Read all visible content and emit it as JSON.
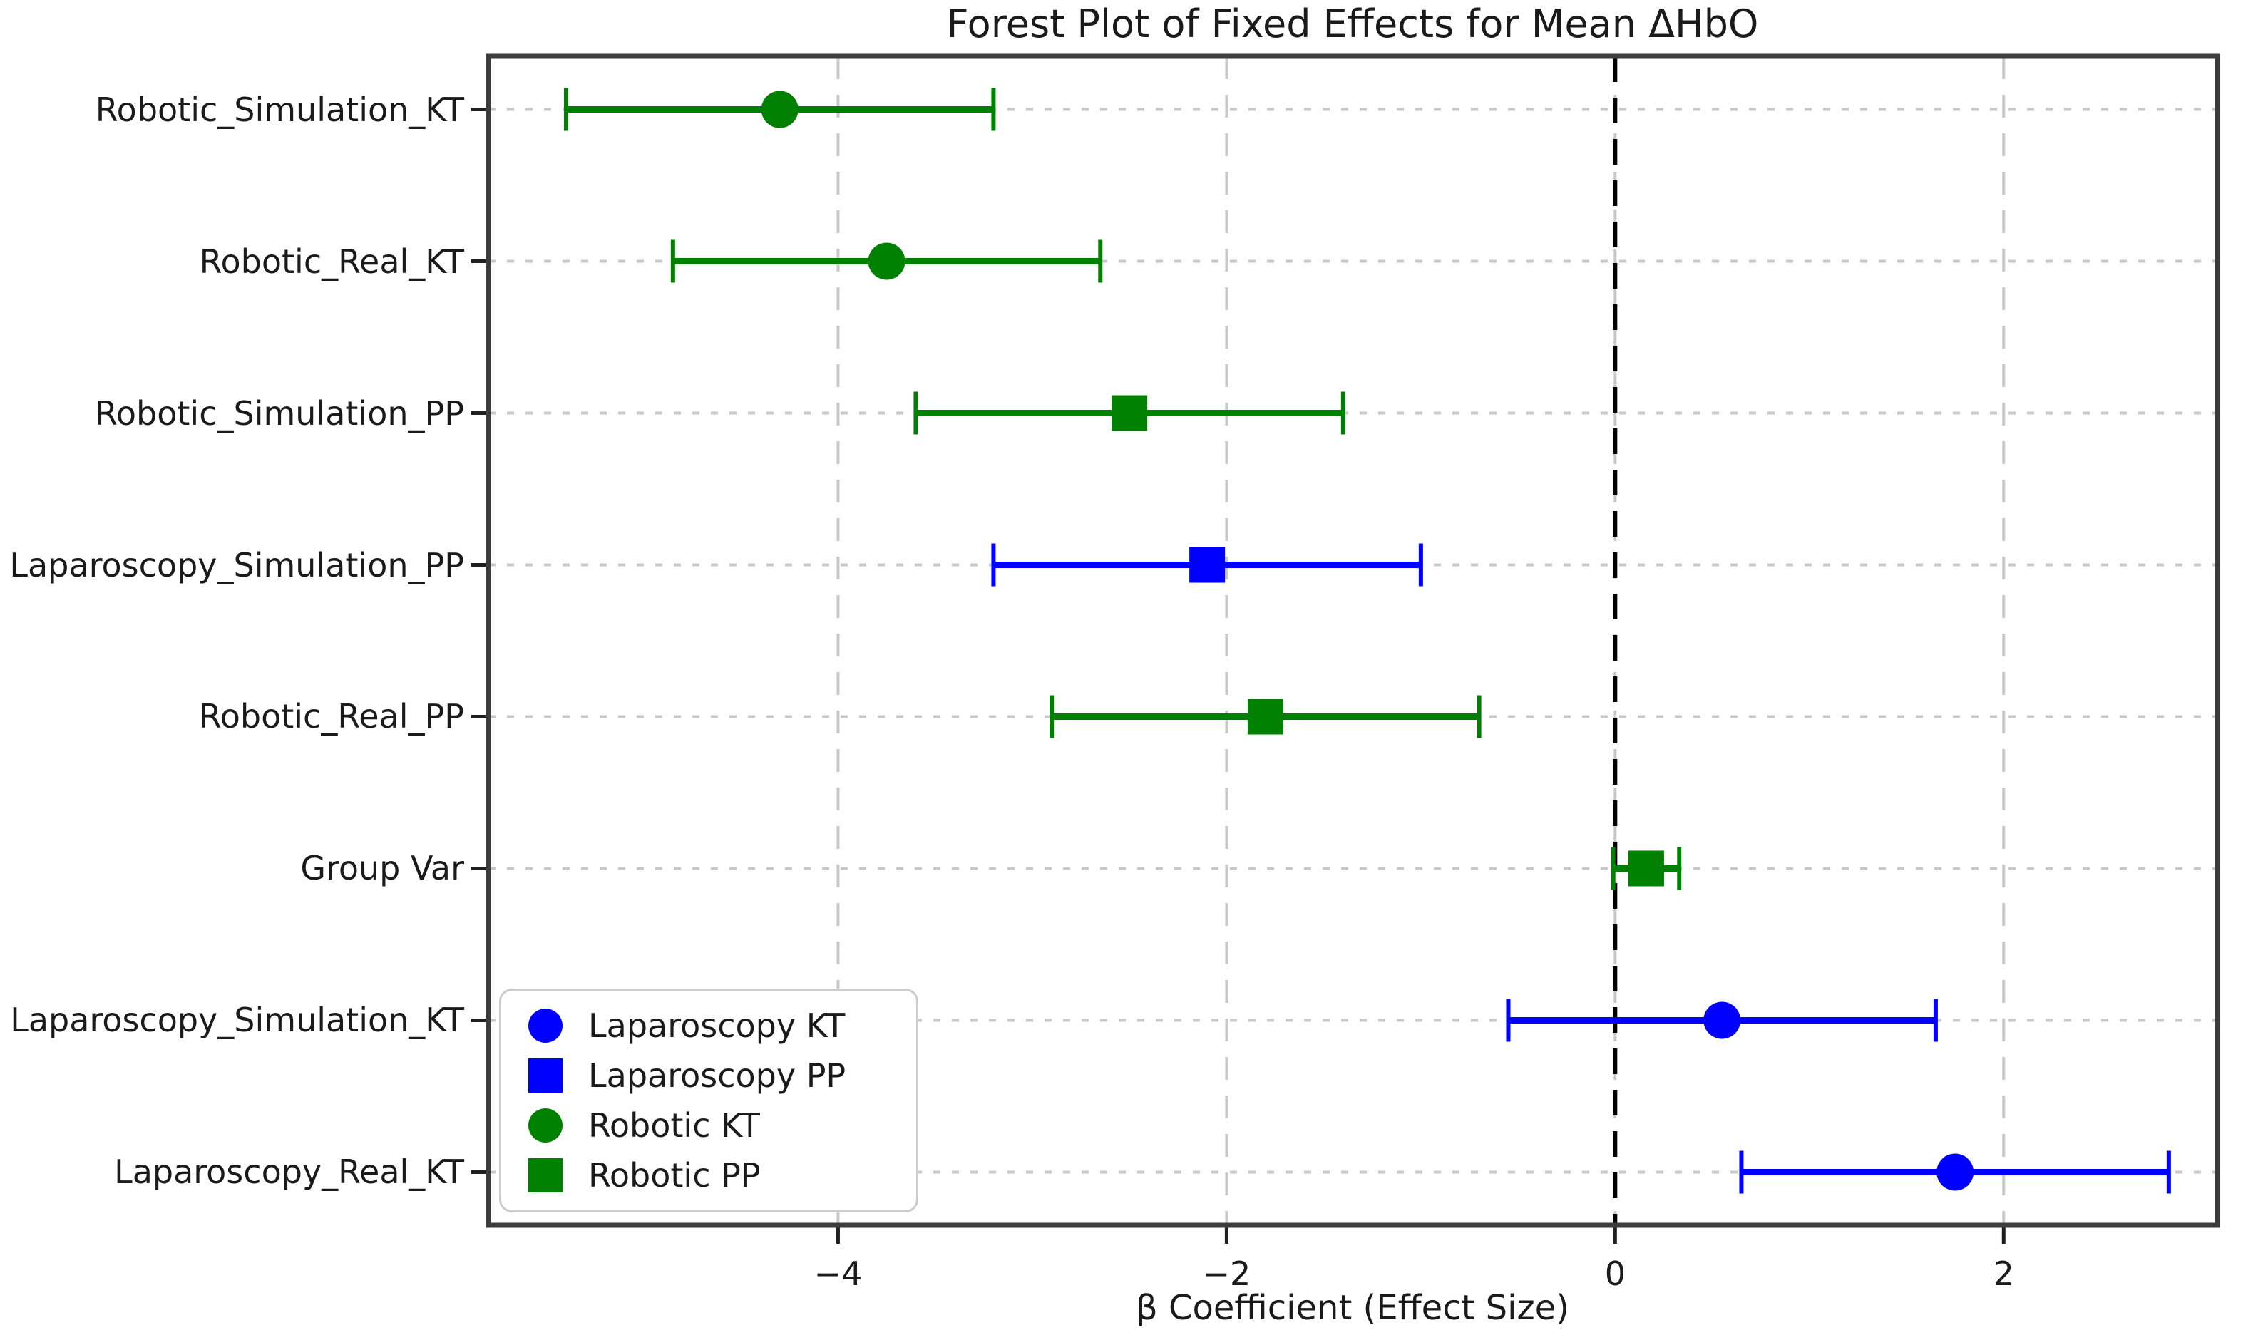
{
  "title": "Forest Plot of Fixed Effects for Mean ΔHbO",
  "xlabel": "β Coefficient (Effect Size)",
  "colors": {
    "laparoscopy_blue": "#0000ff",
    "robotic_green": "#008000",
    "zero_line": "#000000",
    "grid": "#c8c8c8",
    "spine": "#3d3d3d",
    "background": "#ffffff"
  },
  "chart_data": {
    "type": "scatter",
    "subtype": "forest_plot",
    "orientation": "horizontal",
    "title": "Forest Plot of Fixed Effects for Mean ΔHbO",
    "xlabel": "β Coefficient (Effect Size)",
    "ylabel": "",
    "xlim": [
      -5.8,
      3.1
    ],
    "grid": true,
    "zero_line": {
      "x": 0,
      "style": "dashed",
      "color": "#000000"
    },
    "xticks": [
      {
        "value": -4,
        "label": "−4"
      },
      {
        "value": -2,
        "label": "−2"
      },
      {
        "value": 0,
        "label": "0"
      },
      {
        "value": 2,
        "label": "2"
      }
    ],
    "rows": [
      {
        "label": "Robotic_Simulation_KT",
        "value": -4.3,
        "ci_low": -5.4,
        "ci_high": -3.2,
        "group": "Robotic KT",
        "color": "#008000",
        "marker": "circle"
      },
      {
        "label": "Robotic_Real_KT",
        "value": -3.75,
        "ci_low": -4.85,
        "ci_high": -2.65,
        "group": "Robotic KT",
        "color": "#008000",
        "marker": "circle"
      },
      {
        "label": "Robotic_Simulation_PP",
        "value": -2.5,
        "ci_low": -3.6,
        "ci_high": -1.4,
        "group": "Robotic PP",
        "color": "#008000",
        "marker": "square"
      },
      {
        "label": "Laparoscopy_Simulation_PP",
        "value": -2.1,
        "ci_low": -3.2,
        "ci_high": -1.0,
        "group": "Laparoscopy PP",
        "color": "#0000ff",
        "marker": "square"
      },
      {
        "label": "Robotic_Real_PP",
        "value": -1.8,
        "ci_low": -2.9,
        "ci_high": -0.7,
        "group": "Robotic PP",
        "color": "#008000",
        "marker": "square"
      },
      {
        "label": "Group Var",
        "value": 0.16,
        "ci_low": -0.01,
        "ci_high": 0.33,
        "group": "Robotic PP",
        "color": "#008000",
        "marker": "square"
      },
      {
        "label": "Laparoscopy_Simulation_KT",
        "value": 0.55,
        "ci_low": -0.55,
        "ci_high": 1.65,
        "group": "Laparoscopy KT",
        "color": "#0000ff",
        "marker": "circle"
      },
      {
        "label": "Laparoscopy_Real_KT",
        "value": 1.75,
        "ci_low": 0.65,
        "ci_high": 2.85,
        "group": "Laparoscopy KT",
        "color": "#0000ff",
        "marker": "circle"
      }
    ],
    "legend": {
      "position": "lower left",
      "entries": [
        {
          "label": "Laparoscopy KT",
          "color": "#0000ff",
          "marker": "circle"
        },
        {
          "label": "Laparoscopy PP",
          "color": "#0000ff",
          "marker": "square"
        },
        {
          "label": "Robotic KT",
          "color": "#008000",
          "marker": "circle"
        },
        {
          "label": "Robotic PP",
          "color": "#008000",
          "marker": "square"
        }
      ]
    }
  }
}
